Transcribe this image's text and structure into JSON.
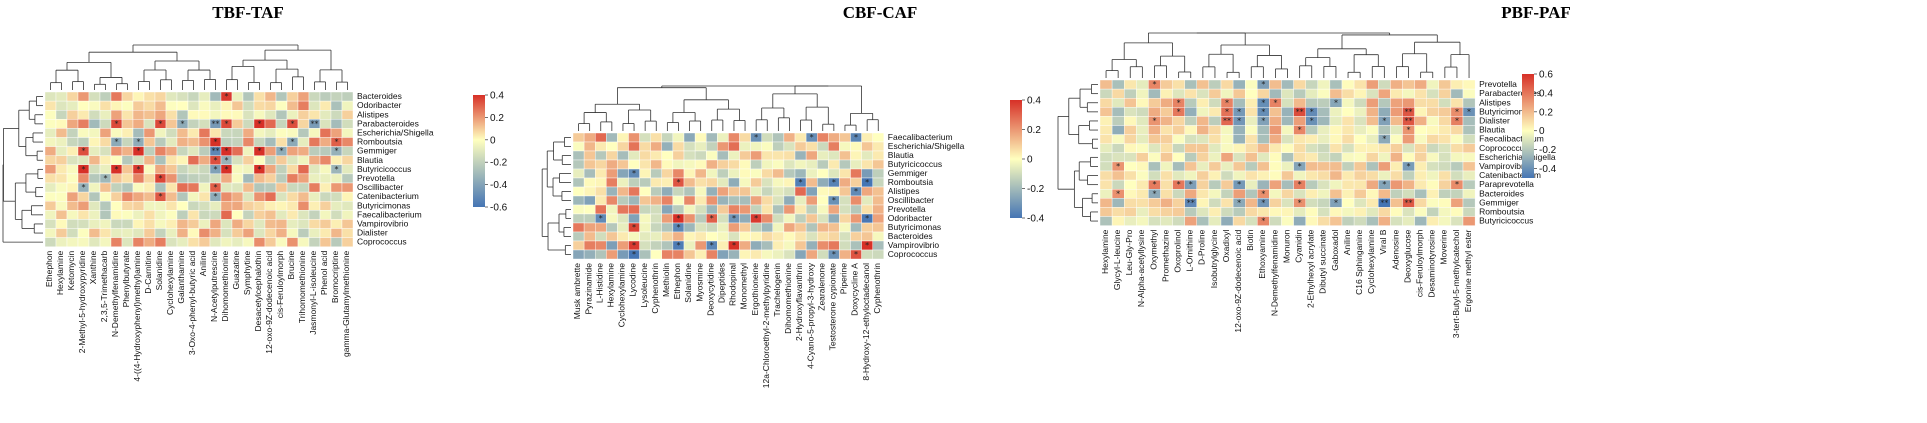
{
  "chart_data": [
    {
      "type": "heatmap",
      "title": "TBF-TAF",
      "rows": [
        "Bacteroides",
        "Odoribacter",
        "Alistipes",
        "Parabacteroides",
        "Escherichia/Shigella",
        "Romboutsia",
        "Gemmiger",
        "Blautia",
        "Butyricicoccus",
        "Prevotella",
        "Oscillibacter",
        "Catenibacterium",
        "Butyricimonas",
        "Faecalibacterium",
        "Vampirovibrio",
        "Dialister",
        "Coprococcus"
      ],
      "columns": [
        "Ethephon",
        "Hexylamine",
        "Ketomycin",
        "2-Methyl-5-hydroxypyridine",
        "Xanthine",
        "2,3,5-Trimethacarb",
        "N-Demethylfenamidine",
        "Phenylbutyrate",
        "4-((4-Hydroxyphenyl)methyl)amine",
        "D-Carnitine",
        "Solanidine",
        "Cyclohexylamine",
        "Galanthamine",
        "3-Oxo-4-phenyl-butyric acid",
        "Aniline",
        "N-Acetylputrescine",
        "Dihomomethionine",
        "Guazatine",
        "Symphytine",
        "Desacetylcephalothin",
        "12-oxo-9Z-dodecenoic acid",
        "cis-Feruloylmorph",
        "Brucine",
        "Trihomomethionine",
        "Jasmonyl-L-isoleucine",
        "Phenol acid",
        "Bromocriptine",
        "gamma-Glutamylmethionine"
      ],
      "colorbar": {
        "min": -0.6,
        "max": 0.4,
        "ticks": [
          "0.4",
          "0.2",
          "0",
          "-0.2",
          "-0.4",
          "-0.6"
        ]
      },
      "low_color": "#4575b4",
      "mid_color": "#ffffbf",
      "high_color": "#d73027"
    },
    {
      "type": "heatmap",
      "title": "CBF-CAF",
      "rows": [
        "Faecalibacterium",
        "Escherichia/Shigella",
        "Blautia",
        "Butyricicoccus",
        "Gemmiger",
        "Romboutsia",
        "Alistipes",
        "Oscillibacter",
        "Prevotella",
        "Odoribacter",
        "Butyricimonas",
        "Bacteroides",
        "Vampirovibrio",
        "Coprococcus"
      ],
      "columns": [
        "Musk ambrette",
        "Pyrazinamide",
        "L-Histidine",
        "Hexylamine",
        "Cyclohexylamine",
        "Lycodine",
        "Lysoleucine",
        "Cyphenothrin",
        "Methiolin",
        "Ethephon",
        "Solanidine",
        "Myosmine",
        "Deoxycytidine",
        "Dipeptides",
        "Rhodopinal",
        "Monomethyl",
        "Ergothioneine",
        "12a-Chloroethyl-2-methylpyridine",
        "Trachelogenin",
        "Dihomomethionine",
        "2-Hydroxyflavanthrin",
        "4-Cyano-5-propyl-3-hydroxy",
        "Zearalenone",
        "Testosterone cypionate",
        "Piperine",
        "Doxycycline A",
        "8-Hydroxy-12-ethyloctadecanol",
        "Cyphenothrin"
      ],
      "colorbar": {
        "min": -0.4,
        "max": 0.4,
        "ticks": [
          "0.4",
          "0.2",
          "0",
          "-0.2",
          "-0.4"
        ]
      },
      "low_color": "#4575b4",
      "mid_color": "#ffffbf",
      "high_color": "#d73027"
    },
    {
      "type": "heatmap",
      "title": "PBF-PAF",
      "rows": [
        "Prevotella",
        "Parabacteroides",
        "Alistipes",
        "Butyricimonas",
        "Dialister",
        "Blautia",
        "Faecalibacterium",
        "Coprococcus",
        "Escherichia/Shigella",
        "Vampirovibrio",
        "Catenibacterium",
        "Paraprevotella",
        "Bacteroides",
        "Gemmiger",
        "Romboutsia",
        "Butyricicoccus"
      ],
      "columns": [
        "Hexylamine",
        "Glycyl-L-leucine",
        "Leu-Gly-Pro",
        "N-Alpha-acetyllysine",
        "Oxymethyl",
        "Promethazine",
        "Oxoprolinol",
        "L-Ornithine",
        "D-Proline",
        "Isobutrylglycine",
        "Oxadixyl",
        "12-oxo-9Z-dodecenoic acid",
        "Biotin",
        "Ethoxyamine",
        "N-Demethylfenamidine",
        "Monuron",
        "Cyanidin",
        "2-Ethylhexyl acrylate",
        "Dibutyl succinate",
        "Gaboxadol",
        "Aniline",
        "C16 Sphinganine",
        "Cyclohexylamine",
        "Viral B",
        "Adenosine",
        "Deoxyglucose",
        "cis-Feruloylmorph",
        "Desaminotyrosine",
        "Moverine",
        "3-tert-Butyl-5-methylcatechol",
        "Ergonine methyl ester"
      ],
      "colorbar": {
        "min": -0.5,
        "max": 0.6,
        "ticks": [
          "0.6",
          "0.4",
          "0.2",
          "0",
          "-0.2",
          "-0.4"
        ]
      },
      "low_color": "#4575b4",
      "mid_color": "#ffffbf",
      "high_color": "#d73027"
    }
  ]
}
